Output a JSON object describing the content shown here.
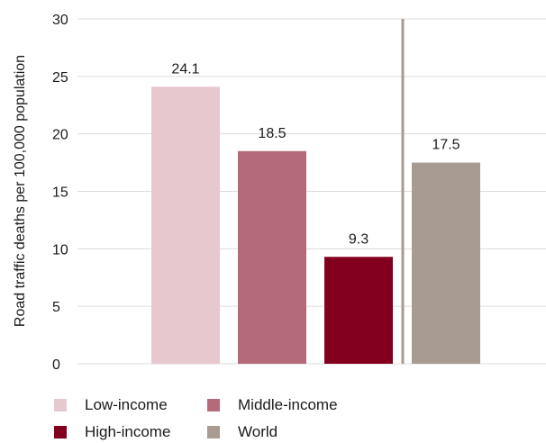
{
  "chart_data": {
    "type": "bar",
    "categories": [
      "Low-income",
      "Middle-income",
      "High-income",
      "World"
    ],
    "values": [
      24.1,
      18.5,
      9.3,
      17.5
    ],
    "value_labels": [
      "24.1",
      "18.5",
      "9.3",
      "17.5"
    ],
    "colors": [
      "#e7c8cf",
      "#b56a79",
      "#82001e",
      "#a89b91"
    ],
    "divider_color": "#a89b91",
    "ylabel": "Road traffic deaths per 100,000 population",
    "xlabel": "",
    "ylim": [
      0,
      30
    ],
    "yticks": [
      0,
      5,
      10,
      15,
      20,
      25,
      30
    ],
    "grid": true,
    "legend_placement": "bottom-left"
  },
  "legend": [
    {
      "label": "Low-income",
      "color": "#e7c8cf"
    },
    {
      "label": "Middle-income",
      "color": "#b56a79"
    },
    {
      "label": "High-income",
      "color": "#82001e"
    },
    {
      "label": "World",
      "color": "#a89b91"
    }
  ]
}
